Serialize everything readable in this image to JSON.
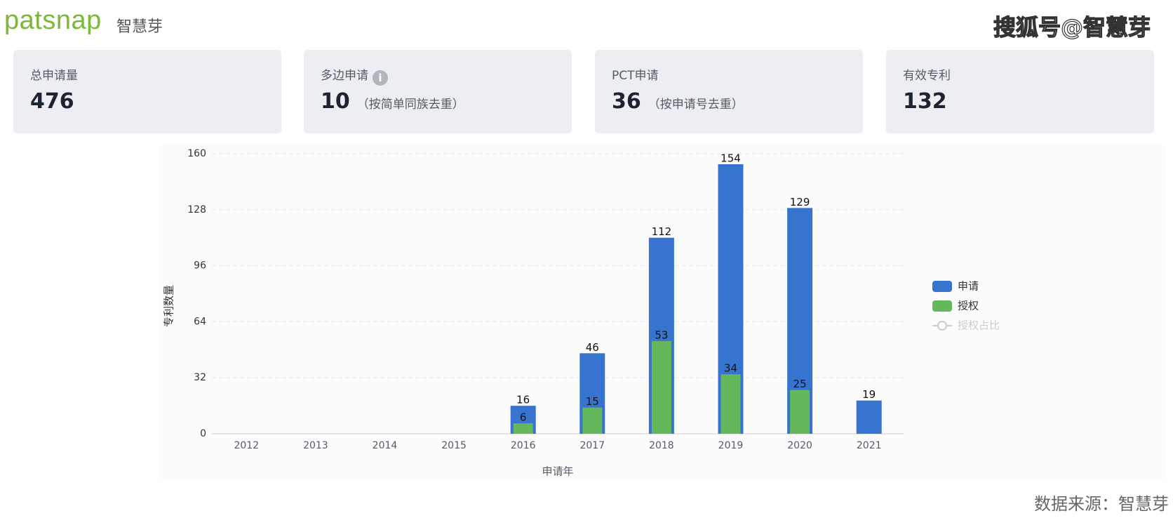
{
  "header": {
    "logo": "patsnap",
    "logo_cn": "智慧芽",
    "watermark": "搜狐号@智慧芽"
  },
  "cards": [
    {
      "label": "总申请量",
      "value": 476
    },
    {
      "label": "多边申请",
      "value": 10,
      "note": "（按简单同族去重）"
    },
    {
      "label": "PCT申请",
      "value": 36,
      "note": "（按申请号去重）"
    },
    {
      "label": "有效专利",
      "value": 132
    }
  ],
  "chart_data": {
    "type": "bar",
    "x_label": "申请年",
    "y_label": "专利数量",
    "categories": [
      "2012",
      "2013",
      "2014",
      "2015",
      "2016",
      "2017",
      "2018",
      "2019",
      "2020",
      "2021"
    ],
    "series": [
      {
        "name": "申请",
        "color": "#3674d0",
        "values": [
          null,
          null,
          null,
          null,
          16,
          46,
          112,
          154,
          129,
          19
        ]
      },
      {
        "name": "授权",
        "color": "#64b75a",
        "values": [
          null,
          null,
          null,
          null,
          6,
          15,
          53,
          34,
          25,
          null
        ]
      },
      {
        "name": "授权占比",
        "type": "line",
        "color": "#cccccc",
        "values": [
          null,
          null,
          null,
          null,
          null,
          null,
          null,
          null,
          null,
          null
        ]
      }
    ],
    "ylim": [
      0,
      160
    ],
    "yticks": [
      0,
      32,
      64,
      96,
      128,
      160
    ],
    "grid": true,
    "legend": "right"
  },
  "footer": {
    "source": "数据来源：智慧芽"
  }
}
